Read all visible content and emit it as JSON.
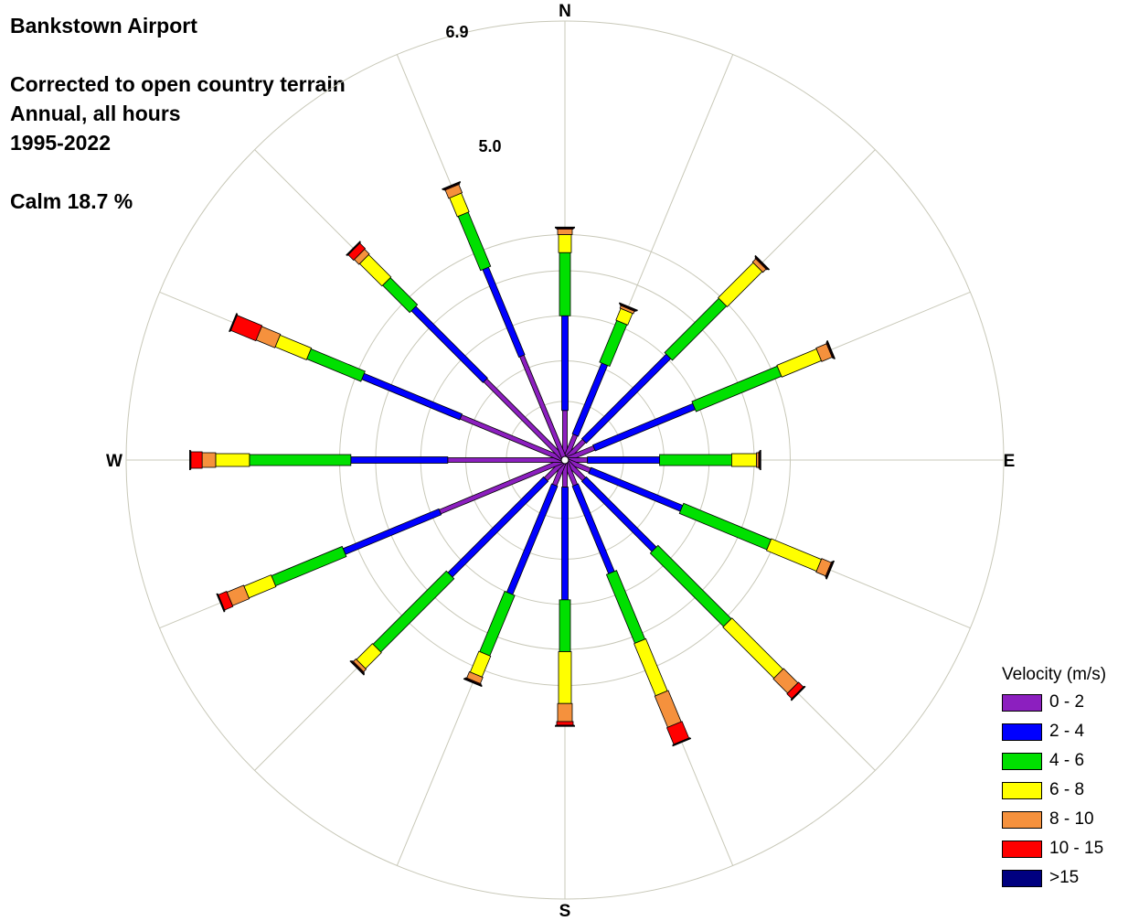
{
  "header": {
    "station": "Bankstown Airport",
    "correction": "Corrected to open country terrain",
    "period": "Annual, all hours",
    "years": "1995-2022",
    "calm": "Calm 18.7 %"
  },
  "chart_data": {
    "type": "windrose",
    "title": "Bankstown Airport",
    "ring_labels": [
      "5.0",
      "6.9"
    ],
    "ring_values": [
      1.3,
      2.2,
      3.2,
      4.2,
      5.0,
      6.9
    ],
    "compass": {
      "N": "N",
      "E": "E",
      "S": "S",
      "W": "W"
    },
    "legend_title": "Velocity (m/s)",
    "bins": [
      {
        "label": "0 - 2",
        "color": "#8c1fbf"
      },
      {
        "label": "2 - 4",
        "color": "#0000ff"
      },
      {
        "label": "4 - 6",
        "color": "#00e000"
      },
      {
        "label": "6 - 8",
        "color": "#ffff00"
      },
      {
        "label": "8 - 10",
        "color": "#f5913d"
      },
      {
        "label": "10 - 15",
        "color": "#ff0000"
      },
      {
        "label": ">15",
        "color": "#000080"
      }
    ],
    "directions": [
      {
        "dir": "N",
        "angle": 0,
        "cum": [
          1.1,
          3.2,
          4.6,
          5.0,
          5.12,
          5.14,
          5.16
        ]
      },
      {
        "dir": "NNE",
        "angle": 22.5,
        "cum": [
          0.6,
          2.3,
          3.3,
          3.58,
          3.64,
          3.66,
          3.68
        ]
      },
      {
        "dir": "NE",
        "angle": 45,
        "cum": [
          0.6,
          3.25,
          4.95,
          6.05,
          6.15,
          6.17,
          6.19
        ]
      },
      {
        "dir": "ENE",
        "angle": 67.5,
        "cum": [
          0.7,
          3.1,
          5.15,
          6.1,
          6.35,
          6.37,
          6.39
        ]
      },
      {
        "dir": "E",
        "angle": 90,
        "cum": [
          0.5,
          2.1,
          3.7,
          4.25,
          4.3,
          4.32,
          4.34
        ]
      },
      {
        "dir": "ESE",
        "angle": 112.5,
        "cum": [
          0.6,
          2.8,
          4.9,
          6.1,
          6.33,
          6.35,
          6.37
        ]
      },
      {
        "dir": "SE",
        "angle": 135,
        "cum": [
          0.6,
          2.8,
          5.1,
          6.7,
          7.15,
          7.3,
          7.32
        ]
      },
      {
        "dir": "SSE",
        "angle": 157.5,
        "cum": [
          0.6,
          2.7,
          4.35,
          5.6,
          6.35,
          6.75,
          6.77
        ]
      },
      {
        "dir": "S",
        "angle": 180,
        "cum": [
          0.6,
          3.1,
          4.25,
          5.4,
          5.8,
          5.88,
          5.9
        ]
      },
      {
        "dir": "SSW",
        "angle": 202.5,
        "cum": [
          0.6,
          3.2,
          4.65,
          5.15,
          5.3,
          5.32,
          5.34
        ]
      },
      {
        "dir": "SW",
        "angle": 225,
        "cum": [
          0.6,
          3.6,
          5.9,
          6.4,
          6.48,
          6.5,
          6.52
        ]
      },
      {
        "dir": "WSW",
        "angle": 247.5,
        "cum": [
          3.0,
          5.3,
          7.0,
          7.65,
          8.05,
          8.25,
          8.27
        ]
      },
      {
        "dir": "W",
        "angle": 270,
        "cum": [
          2.6,
          4.75,
          7.0,
          7.75,
          8.05,
          8.3,
          8.32
        ]
      },
      {
        "dir": "WNW",
        "angle": 292.5,
        "cum": [
          2.5,
          4.85,
          6.15,
          6.9,
          7.35,
          7.95,
          7.97
        ]
      },
      {
        "dir": "NW",
        "angle": 315,
        "cum": [
          2.5,
          4.75,
          5.6,
          6.3,
          6.45,
          6.62,
          6.64
        ]
      },
      {
        "dir": "NNW",
        "angle": 337.5,
        "cum": [
          2.5,
          4.6,
          5.9,
          6.35,
          6.55,
          6.57,
          6.59
        ]
      }
    ]
  }
}
